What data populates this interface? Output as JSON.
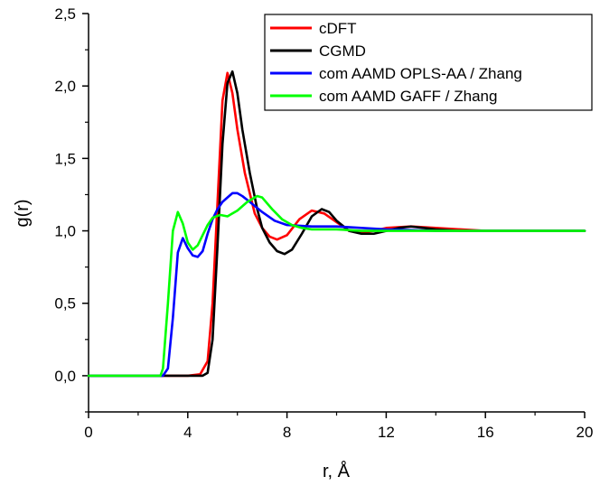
{
  "chart_data": {
    "type": "line",
    "title": "",
    "xlabel": "r, Å",
    "ylabel": "g(r)",
    "xlim": [
      0,
      20
    ],
    "ylim": [
      -0.25,
      2.5
    ],
    "xticks": [
      0,
      4,
      8,
      12,
      16,
      20
    ],
    "xtick_labels": [
      "0",
      "4",
      "8",
      "12",
      "16",
      "20"
    ],
    "yticks": [
      0.0,
      0.5,
      1.0,
      1.5,
      2.0,
      2.5
    ],
    "ytick_labels": [
      "0,0",
      "0,5",
      "1,0",
      "1,5",
      "2,0",
      "2,5"
    ],
    "grid": false,
    "legend_position": "top-right",
    "series": [
      {
        "name": "cDFT",
        "color": "#ff0000",
        "x": [
          0,
          2,
          4,
          4.5,
          4.8,
          5.0,
          5.2,
          5.4,
          5.6,
          5.8,
          6.0,
          6.3,
          6.7,
          7.0,
          7.3,
          7.6,
          8.0,
          8.5,
          9.0,
          9.5,
          10.0,
          10.5,
          11.0,
          11.5,
          12.0,
          13.0,
          14.0,
          15.0,
          16.0,
          18.0,
          20.0
        ],
        "values": [
          0,
          0,
          0,
          0.01,
          0.1,
          0.5,
          1.2,
          1.9,
          2.09,
          1.95,
          1.7,
          1.4,
          1.12,
          1.02,
          0.96,
          0.94,
          0.97,
          1.08,
          1.14,
          1.12,
          1.06,
          1.0,
          0.99,
          1.0,
          1.02,
          1.03,
          1.02,
          1.01,
          1.0,
          1.0,
          1.0
        ]
      },
      {
        "name": "CGMD",
        "color": "#000000",
        "x": [
          0,
          2,
          4,
          4.6,
          4.8,
          5.0,
          5.2,
          5.4,
          5.6,
          5.8,
          6.0,
          6.2,
          6.5,
          6.8,
          7.0,
          7.3,
          7.6,
          7.9,
          8.2,
          8.6,
          9.0,
          9.4,
          9.7,
          10.0,
          10.5,
          11.0,
          11.5,
          12.0,
          12.5,
          13.0,
          13.5,
          14.0,
          15.0,
          16.0,
          18.0,
          20.0
        ],
        "values": [
          0,
          0,
          0,
          0,
          0.02,
          0.25,
          0.9,
          1.6,
          2.02,
          2.1,
          1.95,
          1.7,
          1.4,
          1.15,
          1.02,
          0.92,
          0.86,
          0.84,
          0.87,
          0.98,
          1.1,
          1.15,
          1.13,
          1.07,
          1.0,
          0.98,
          0.98,
          1.0,
          1.02,
          1.03,
          1.02,
          1.01,
          1.0,
          1.0,
          1.0,
          1.0
        ]
      },
      {
        "name": "com AAMD OPLS-AA / Zhang",
        "color": "#0000ff",
        "x": [
          0,
          2,
          3.0,
          3.2,
          3.4,
          3.6,
          3.8,
          4.0,
          4.2,
          4.4,
          4.6,
          4.8,
          5.0,
          5.2,
          5.4,
          5.6,
          5.8,
          6.0,
          6.2,
          6.5,
          7.0,
          7.5,
          8.0,
          9.0,
          10.0,
          11.0,
          12.0,
          14.0,
          16.0,
          18.0,
          20.0
        ],
        "values": [
          0,
          0,
          0,
          0.05,
          0.4,
          0.85,
          0.95,
          0.88,
          0.83,
          0.82,
          0.86,
          0.98,
          1.08,
          1.15,
          1.2,
          1.23,
          1.26,
          1.26,
          1.24,
          1.2,
          1.13,
          1.07,
          1.04,
          1.03,
          1.03,
          1.02,
          1.01,
          1.0,
          1.0,
          1.0,
          1.0
        ]
      },
      {
        "name": "com AAMD GAFF / Zhang",
        "color": "#00ff00",
        "x": [
          0,
          2,
          2.9,
          3.0,
          3.2,
          3.4,
          3.6,
          3.8,
          4.0,
          4.2,
          4.4,
          4.6,
          4.8,
          5.0,
          5.3,
          5.6,
          6.0,
          6.4,
          6.8,
          7.0,
          7.4,
          7.8,
          8.2,
          8.6,
          9.0,
          10.0,
          11.0,
          12.0,
          14.0,
          16.0,
          18.0,
          20.0
        ],
        "values": [
          0,
          0,
          0,
          0.05,
          0.5,
          1.0,
          1.13,
          1.05,
          0.92,
          0.87,
          0.9,
          0.97,
          1.04,
          1.09,
          1.11,
          1.1,
          1.14,
          1.2,
          1.24,
          1.23,
          1.15,
          1.08,
          1.04,
          1.02,
          1.01,
          1.01,
          1.0,
          1.0,
          1.0,
          1.0,
          1.0,
          1.0
        ]
      }
    ]
  }
}
